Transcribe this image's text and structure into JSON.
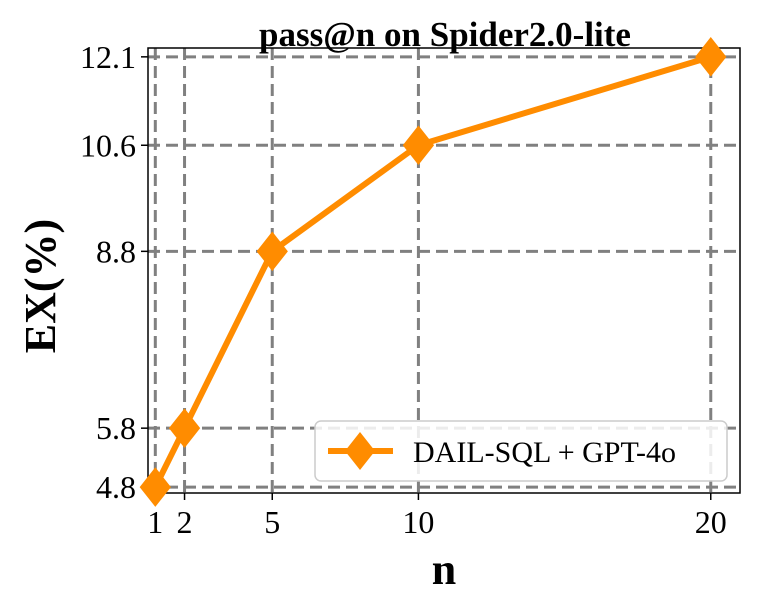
{
  "chart_data": {
    "type": "line",
    "title": "pass@n on Spider2.0-lite",
    "xlabel": "n",
    "ylabel": "EX(%)",
    "x": [
      1,
      2,
      5,
      10,
      20
    ],
    "x_tick_labels": [
      "1",
      "2",
      "5",
      "10",
      "20"
    ],
    "y_ticks": [
      4.8,
      5.8,
      8.8,
      10.6,
      12.1
    ],
    "y_tick_labels": [
      "4.8",
      "5.8",
      "8.8",
      "10.6",
      "12.1"
    ],
    "xlim": [
      0.75,
      21
    ],
    "ylim": [
      4.7,
      12.25
    ],
    "grid": true,
    "legend_position": "lower right",
    "series": [
      {
        "name": "DAIL-SQL + GPT-4o",
        "values": [
          4.8,
          5.8,
          8.8,
          10.6,
          12.1
        ],
        "color": "#ff8c00",
        "marker": "diamond"
      }
    ]
  }
}
